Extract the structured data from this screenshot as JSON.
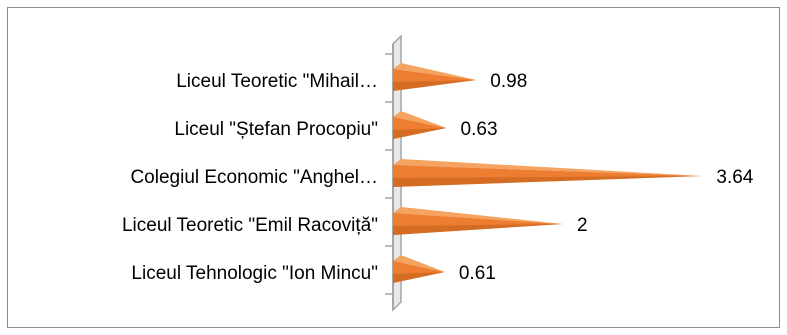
{
  "chart_data": {
    "type": "bar",
    "orientation": "horizontal",
    "categories": [
      "Liceul Teoretic \"Mihail…",
      "Liceul \"Ștefan Procopiu\"",
      "Colegiul Economic \"Anghel…",
      "Liceul Teoretic \"Emil Racoviță\"",
      "Liceul Tehnologic \"Ion Mincu\""
    ],
    "values": [
      0.98,
      0.63,
      3.64,
      2,
      0.61
    ],
    "value_labels": [
      "0.98",
      "0.63",
      "3.64",
      "2",
      "0.61"
    ],
    "title": "",
    "xlabel": "",
    "ylabel": "",
    "xlim": [
      0,
      4
    ],
    "grid": false,
    "legend": "none",
    "colors": {
      "bar": "#ed7d31",
      "bar_light": "#f4a460",
      "bar_dark": "#c05f1a",
      "axis": "#a6a6a6",
      "frame": "#8c8c8c"
    }
  }
}
